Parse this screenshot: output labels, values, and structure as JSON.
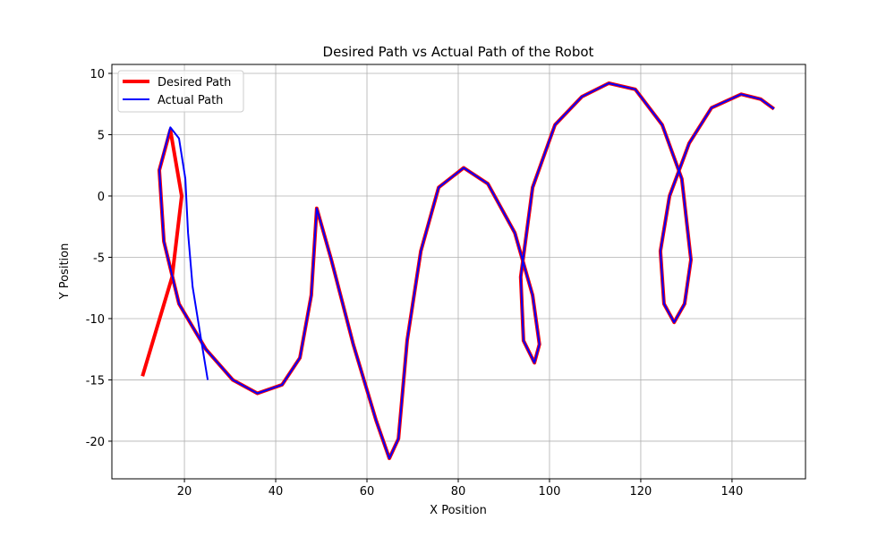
{
  "chart_data": {
    "type": "line",
    "title": "Desired Path vs Actual Path of the Robot",
    "xlabel": "X Position",
    "ylabel": "Y Position",
    "xlim": [
      4.1,
      156.1
    ],
    "ylim": [
      -23.07,
      10.73
    ],
    "xticks": [
      20,
      40,
      60,
      80,
      100,
      120,
      140
    ],
    "yticks": [
      -20,
      -15,
      -10,
      -5,
      0,
      5,
      10
    ],
    "grid": true,
    "legend": "upper left",
    "series": [
      {
        "name": "Desired Path",
        "color": "#ff0000",
        "width": 4,
        "x": [
          10.8,
          17.3,
          19.4,
          16.9,
          14.5,
          15.5,
          18.8,
          24.7,
          30.6,
          36,
          41.4,
          45.3,
          47.8,
          49,
          52.2,
          57,
          62,
          64.9,
          66.9,
          68.8,
          71.8,
          75.7,
          81.2,
          86.5,
          92.4,
          96.3,
          97.8,
          96.7,
          94.3,
          93.7,
          96.3,
          101.2,
          107.1,
          113,
          118.8,
          124.7,
          129,
          131,
          129.6,
          127.3,
          125.1,
          124.3,
          126.3,
          130.6,
          135.5,
          142,
          146.3,
          149.2
        ],
        "values": [
          -14.7,
          -6.6,
          0,
          5.4,
          2.1,
          -3.7,
          -8.8,
          -12.5,
          -15,
          -16.1,
          -15.4,
          -13.2,
          -8.1,
          -1,
          -5.2,
          -12.1,
          -18.3,
          -21.4,
          -19.8,
          -11.8,
          -4.5,
          0.7,
          2.3,
          1,
          -3,
          -8.1,
          -12.1,
          -13.6,
          -11.8,
          -6.6,
          0.7,
          5.8,
          8.1,
          9.2,
          8.7,
          5.8,
          1.4,
          -5.2,
          -8.8,
          -10.3,
          -8.8,
          -4.5,
          0,
          4.3,
          7.2,
          8.3,
          7.9,
          7.1
        ]
      },
      {
        "name": "Actual Path",
        "color": "#0000ff",
        "width": 2,
        "x": [
          25.1,
          23.7,
          21.8,
          20.8,
          20.2,
          18.8,
          16.9,
          14.5,
          15.5,
          18.8,
          24.7,
          30.6,
          36,
          41.4,
          45.3,
          47.8,
          49,
          52.2,
          57,
          62,
          64.9,
          66.9,
          68.8,
          71.8,
          75.7,
          81.2,
          86.5,
          92.4,
          96.3,
          97.8,
          96.7,
          94.3,
          93.7,
          96.3,
          101.2,
          107.1,
          113,
          118.8,
          124.7,
          129,
          131,
          129.6,
          127.3,
          125.1,
          124.3,
          126.3,
          130.6,
          135.5,
          142,
          146.3,
          149.2
        ],
        "values": [
          -15,
          -11.8,
          -7.4,
          -3,
          1.4,
          4.7,
          5.6,
          2.1,
          -3.7,
          -8.8,
          -12.5,
          -15,
          -16.1,
          -15.4,
          -13.2,
          -8.1,
          -1,
          -5.2,
          -12.1,
          -18.3,
          -21.4,
          -19.8,
          -11.8,
          -4.5,
          0.7,
          2.3,
          1,
          -3,
          -8.1,
          -12.1,
          -13.6,
          -11.8,
          -6.6,
          0.7,
          5.8,
          8.1,
          9.2,
          8.7,
          5.8,
          1.4,
          -5.2,
          -8.8,
          -10.3,
          -8.8,
          -4.5,
          0,
          4.3,
          7.2,
          8.3,
          7.9,
          7.1
        ]
      }
    ]
  }
}
